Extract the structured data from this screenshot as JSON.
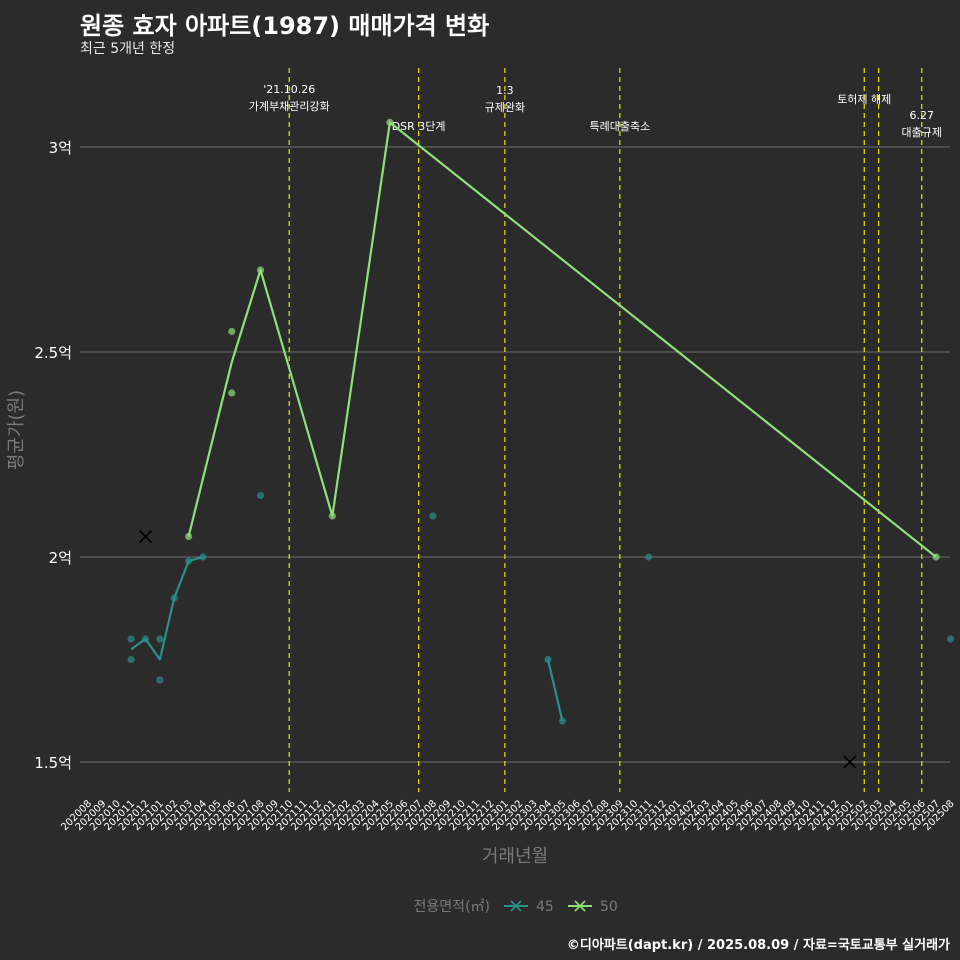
{
  "title": "원종 효자 아파트(1987) 매매가격 변화",
  "subtitle": "최근 5개년 한정",
  "caption": "©디아파트(dapt.kr) / 2025.08.09 / 자료=국토교통부 실거래가",
  "colors": {
    "background": "#2b2b2b",
    "grid": "#6e6e6e",
    "event_line": "#e8e800",
    "series_45": "#2a8f8f",
    "series_50": "#8ee07a",
    "text": "#ffffff",
    "axis_title": "#7a7a7a"
  },
  "chart_data": {
    "type": "line",
    "xlabel": "거래년월",
    "ylabel": "평균가(원)",
    "legend_title": "전용면적(㎡)",
    "legend_position": "bottom",
    "x_ticks": [
      "202008",
      "202009",
      "202010",
      "202011",
      "202012",
      "202101",
      "202102",
      "202103",
      "202104",
      "202105",
      "202106",
      "202107",
      "202108",
      "202109",
      "202110",
      "202111",
      "202112",
      "202201",
      "202202",
      "202203",
      "202204",
      "202205",
      "202206",
      "202207",
      "202208",
      "202209",
      "202210",
      "202211",
      "202212",
      "202301",
      "202302",
      "202303",
      "202304",
      "202305",
      "202306",
      "202307",
      "202308",
      "202309",
      "202310",
      "202311",
      "202312",
      "202401",
      "202402",
      "202403",
      "202404",
      "202405",
      "202406",
      "202407",
      "202408",
      "202409",
      "202410",
      "202411",
      "202412",
      "202501",
      "202502",
      "202503",
      "202504",
      "202505",
      "202506",
      "202507",
      "202508"
    ],
    "y_ticks": [
      {
        "value": 1.5,
        "label": "1.5억"
      },
      {
        "value": 2.0,
        "label": "2억"
      },
      {
        "value": 2.5,
        "label": "2.5억"
      },
      {
        "value": 3.0,
        "label": "3억"
      }
    ],
    "ylim": [
      1.43,
      3.2
    ],
    "series": [
      {
        "name": "45",
        "line": [
          [
            "202011",
            1.775
          ],
          [
            "202012",
            1.8
          ],
          [
            "202101",
            1.75
          ],
          [
            "202102",
            1.9
          ],
          [
            "202103",
            1.99
          ],
          [
            "202104",
            2.0
          ]
        ],
        "line2": [
          [
            "202304",
            1.75
          ],
          [
            "202305",
            1.6
          ]
        ],
        "points": [
          [
            "202011",
            1.8
          ],
          [
            "202011",
            1.75
          ],
          [
            "202012",
            1.8
          ],
          [
            "202101",
            1.8
          ],
          [
            "202101",
            1.7
          ],
          [
            "202102",
            1.9
          ],
          [
            "202103",
            1.99
          ],
          [
            "202104",
            2.0
          ],
          [
            "202108",
            2.15
          ],
          [
            "202208",
            2.1
          ],
          [
            "202304",
            1.75
          ],
          [
            "202305",
            1.6
          ],
          [
            "202311",
            2.0
          ],
          [
            "202508",
            1.8
          ]
        ],
        "cross": [
          [
            "202501",
            1.5
          ]
        ]
      },
      {
        "name": "50",
        "line": [
          [
            "202103",
            2.05
          ],
          [
            "202106",
            2.475
          ],
          [
            "202108",
            2.7
          ],
          [
            "202201",
            2.1
          ],
          [
            "202205",
            3.06
          ],
          [
            "202507",
            2.0
          ]
        ],
        "points": [
          [
            "202103",
            2.05
          ],
          [
            "202106",
            2.55
          ],
          [
            "202106",
            2.4
          ],
          [
            "202108",
            2.7
          ],
          [
            "202201",
            2.1
          ],
          [
            "202205",
            3.06
          ],
          [
            "202507",
            2.0
          ]
        ],
        "cross": [
          [
            "202012",
            2.05
          ]
        ]
      }
    ],
    "events": [
      {
        "x": "202110",
        "lines": [
          "'21.10.26",
          "가계부채관리강화"
        ]
      },
      {
        "x": "202207",
        "lines": [
          "DSR 3단계"
        ]
      },
      {
        "x": "202301",
        "lines": [
          "1.3",
          "규제완화"
        ]
      },
      {
        "x": "202309",
        "lines": [
          "특례대출축소"
        ]
      },
      {
        "x": "202502",
        "lines": [
          "토허제 해제"
        ]
      },
      {
        "x": "202503",
        "lines": []
      },
      {
        "x": "202506",
        "lines": [
          "6.27",
          "대출규제"
        ]
      }
    ]
  }
}
